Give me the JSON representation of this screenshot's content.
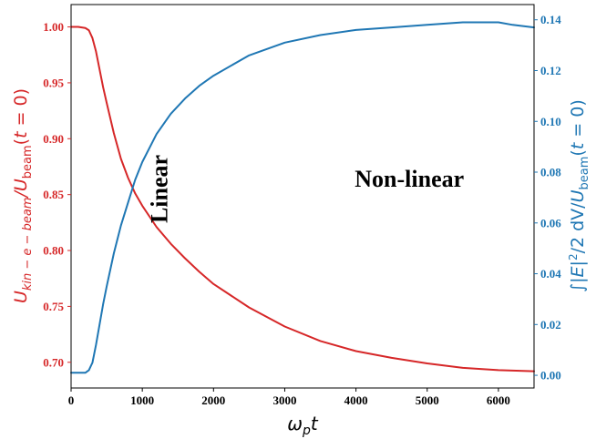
{
  "chart_data": {
    "type": "line",
    "title": "",
    "xlabel": "ω_p t",
    "ylabel_left": "U_{kin−e−beam}/U_beam(t = 0)",
    "ylabel_right": "∫|E|²/2 dV/U_beam(t = 0)",
    "xlim": [
      0,
      6500
    ],
    "ylim_left": [
      0.677,
      1.02
    ],
    "ylim_right": [
      -0.005,
      0.146
    ],
    "x_ticks": [
      "0",
      "1000",
      "2000",
      "3000",
      "4000",
      "5000",
      "6000"
    ],
    "y_left_ticks": [
      "0.70",
      "0.75",
      "0.80",
      "0.85",
      "0.90",
      "0.95",
      "1.00"
    ],
    "y_right_ticks": [
      "0.00",
      "0.02",
      "0.04",
      "0.06",
      "0.08",
      "0.10",
      "0.12",
      "0.14"
    ],
    "grid": false,
    "series": [
      {
        "axis": "left",
        "color": "#d62728",
        "x": [
          0,
          100,
          200,
          250,
          300,
          350,
          400,
          450,
          500,
          600,
          700,
          800,
          900,
          1000,
          1200,
          1400,
          1600,
          1800,
          2000,
          2500,
          3000,
          3500,
          4000,
          4500,
          5000,
          5500,
          6000,
          6500
        ],
        "y": [
          1.0,
          1.0,
          0.999,
          0.997,
          0.99,
          0.978,
          0.962,
          0.946,
          0.932,
          0.905,
          0.882,
          0.865,
          0.851,
          0.84,
          0.821,
          0.806,
          0.793,
          0.781,
          0.77,
          0.749,
          0.732,
          0.719,
          0.71,
          0.704,
          0.699,
          0.695,
          0.693,
          0.692
        ]
      },
      {
        "axis": "right",
        "color": "#1f77b4",
        "x": [
          0,
          100,
          200,
          250,
          300,
          350,
          400,
          450,
          500,
          600,
          700,
          800,
          900,
          1000,
          1200,
          1400,
          1600,
          1800,
          2000,
          2500,
          3000,
          3500,
          4000,
          4500,
          5000,
          5500,
          5800,
          6000,
          6200,
          6500
        ],
        "y": [
          0.001,
          0.001,
          0.001,
          0.002,
          0.005,
          0.012,
          0.02,
          0.028,
          0.035,
          0.048,
          0.059,
          0.068,
          0.077,
          0.084,
          0.095,
          0.103,
          0.109,
          0.114,
          0.118,
          0.126,
          0.131,
          0.134,
          0.136,
          0.137,
          0.138,
          0.139,
          0.139,
          0.139,
          0.138,
          0.137
        ]
      }
    ],
    "annotations": [
      {
        "text": "Linear",
        "x": 1350,
        "y_left": 0.855,
        "rotation": -90
      },
      {
        "text": "Non-linear",
        "x": 4750,
        "y_left": 0.857,
        "rotation": 0
      }
    ]
  }
}
